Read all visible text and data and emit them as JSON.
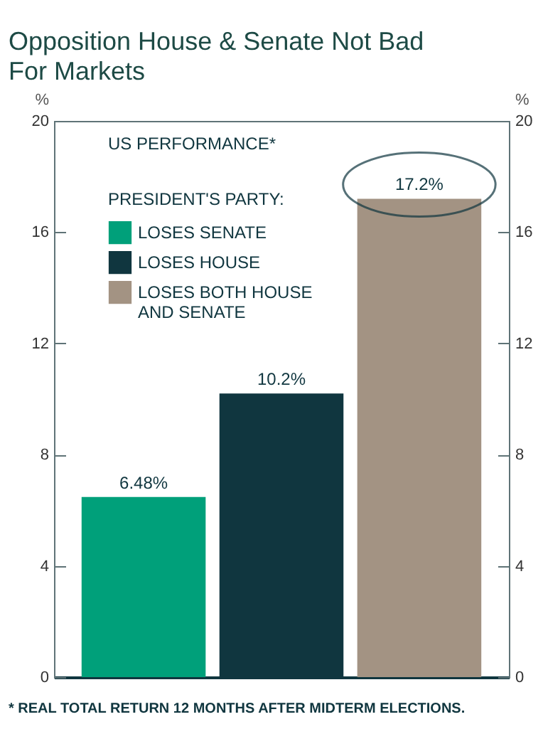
{
  "chart_data": {
    "type": "bar",
    "title": "Opposition House & Senate Not Bad For Markets",
    "subtitle": "US PERFORMANCE*",
    "ylabel": "%",
    "y2label": "%",
    "legend_title": "PRESIDENT'S PARTY:",
    "categories": [
      null,
      null,
      null
    ],
    "series": [
      {
        "name": "LOSES SENATE",
        "color": "#00a07a",
        "values": [
          6.48,
          null,
          null
        ],
        "value_labels": [
          "6.48%",
          null,
          null
        ]
      },
      {
        "name": "LOSES HOUSE",
        "color": "#10363f",
        "values": [
          null,
          10.2,
          null
        ],
        "value_labels": [
          null,
          "10.2%",
          null
        ]
      },
      {
        "name": "LOSES BOTH HOUSE AND SENATE",
        "color": "#a39383",
        "values": [
          null,
          null,
          17.2
        ],
        "value_labels": [
          null,
          null,
          "17.2%"
        ]
      }
    ],
    "ylim": [
      0,
      20
    ],
    "yticks": [
      0,
      4,
      8,
      12,
      16,
      20
    ],
    "y2lim": [
      0,
      20
    ],
    "y2ticks": [
      0,
      4,
      8,
      12,
      16,
      20
    ],
    "grid": false,
    "legend": "top left",
    "annotations": [
      "* REAL TOTAL RETURN 12 MONTHS AFTER MIDTERM ELECTIONS."
    ]
  }
}
